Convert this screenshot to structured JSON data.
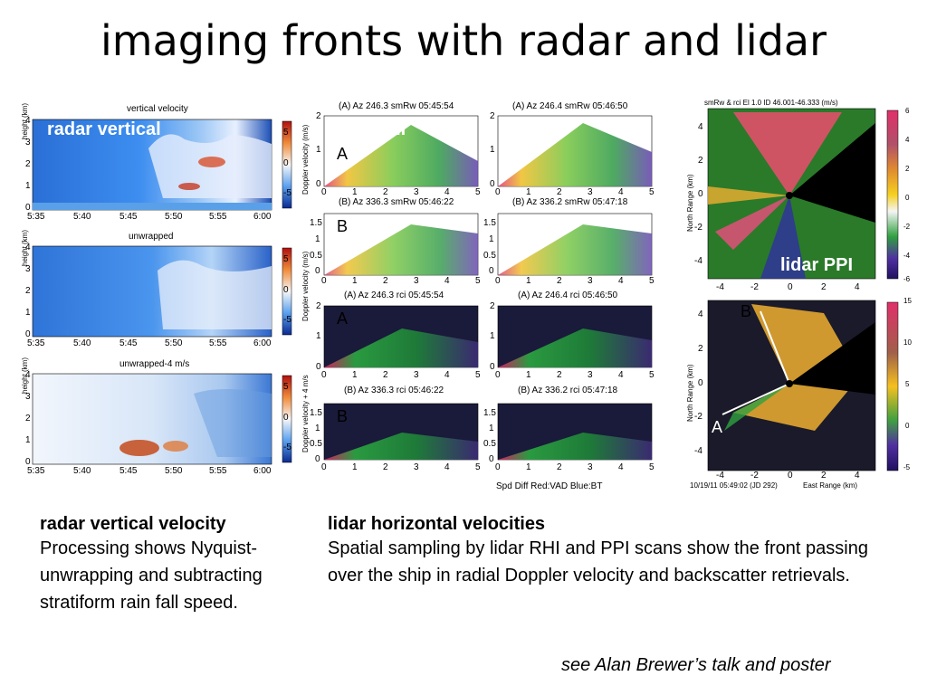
{
  "title": "imaging fronts with radar and lidar",
  "radar": {
    "panels": [
      {
        "title": "vertical velocity",
        "cbar_label": "Doppler velocity (m/s)",
        "cbar_ticks": [
          "5",
          "0",
          "-5"
        ]
      },
      {
        "title": "unwrapped",
        "cbar_label": "Doppler velocity (m/s)",
        "cbar_ticks": [
          "5",
          "0",
          "-5"
        ]
      },
      {
        "title": "unwrapped-4 m/s",
        "cbar_label": "Doppler velocity + 4 m/s",
        "cbar_ticks": [
          "5",
          "0",
          "-5"
        ]
      }
    ],
    "ylabel": "height (km)",
    "yticks": [
      "4",
      "3",
      "2",
      "1",
      "0"
    ],
    "xticks": [
      "5:35",
      "5:40",
      "5:45",
      "5:50",
      "5:55",
      "6:00"
    ],
    "overlay": "radar vertical"
  },
  "rhi": {
    "panels": [
      {
        "title": "(A)  Az 246.3 smRw 05:45:54",
        "yticks": [
          "2",
          "1",
          "0"
        ],
        "letter": "A"
      },
      {
        "title": "(A)  Az 246.4 smRw 05:46:50",
        "yticks": [
          "2",
          "1",
          "0"
        ]
      },
      {
        "title": "(B)  Az 336.3 smRw 05:46:22",
        "yticks": [
          "1.5",
          "1",
          "0.5",
          "0"
        ],
        "letter": "B"
      },
      {
        "title": "(B)  Az 336.2 smRw 05:47:18",
        "yticks": [
          "1.5",
          "1",
          "0.5",
          "0"
        ]
      },
      {
        "title": "(A)  Az 246.3 rci 05:45:54",
        "yticks": [
          "2",
          "1",
          "0"
        ],
        "letter": "A"
      },
      {
        "title": "(A)  Az 246.4 rci 05:46:50",
        "yticks": [
          "2",
          "1",
          "0"
        ]
      },
      {
        "title": "(B)  Az 336.3 rci 05:46:22",
        "yticks": [
          "1.5",
          "1",
          "0.5",
          "0"
        ],
        "letter": "B"
      },
      {
        "title": "(B)  Az 336.2 rci 05:47:18",
        "yticks": [
          "1.5",
          "1",
          "0.5",
          "0"
        ]
      }
    ],
    "xticks": [
      "0",
      "1",
      "2",
      "3",
      "4",
      "5"
    ],
    "overlay": "lidar RHI",
    "footer": "Spd Diff Red:VAD Blue:BT"
  },
  "ppi": {
    "header": "smRw & rci   El 1.0   ID 46.001-46.333   (m/s)",
    "ylabel": "North Range (km)",
    "xlabel": "East Range (km)",
    "xticks": [
      "-4",
      "-2",
      "0",
      "2",
      "4"
    ],
    "yticks": [
      "4",
      "2",
      "0",
      "-2",
      "-4"
    ],
    "cbar1_ticks": [
      "6",
      "4",
      "2",
      "0",
      "-2",
      "-4",
      "-6"
    ],
    "cbar2_ticks": [
      "15",
      "10",
      "5",
      "0",
      "-5"
    ],
    "overlay": "lidar PPI",
    "letter_a": "A",
    "letter_b": "B",
    "timestamp": "10/19/11 05:49:02 (JD 292)"
  },
  "captions": {
    "left_head": "radar vertical velocity",
    "left_body": "Processing shows Nyquist-unwrapping and subtracting stratiform rain fall speed.",
    "right_head": "lidar horizontal velocities",
    "right_body": "Spatial sampling by lidar RHI and PPI scans show the front passing over the ship in radial Doppler velocity and backscatter retrievals.",
    "credit": "see Alan Brewer’s talk and poster"
  }
}
